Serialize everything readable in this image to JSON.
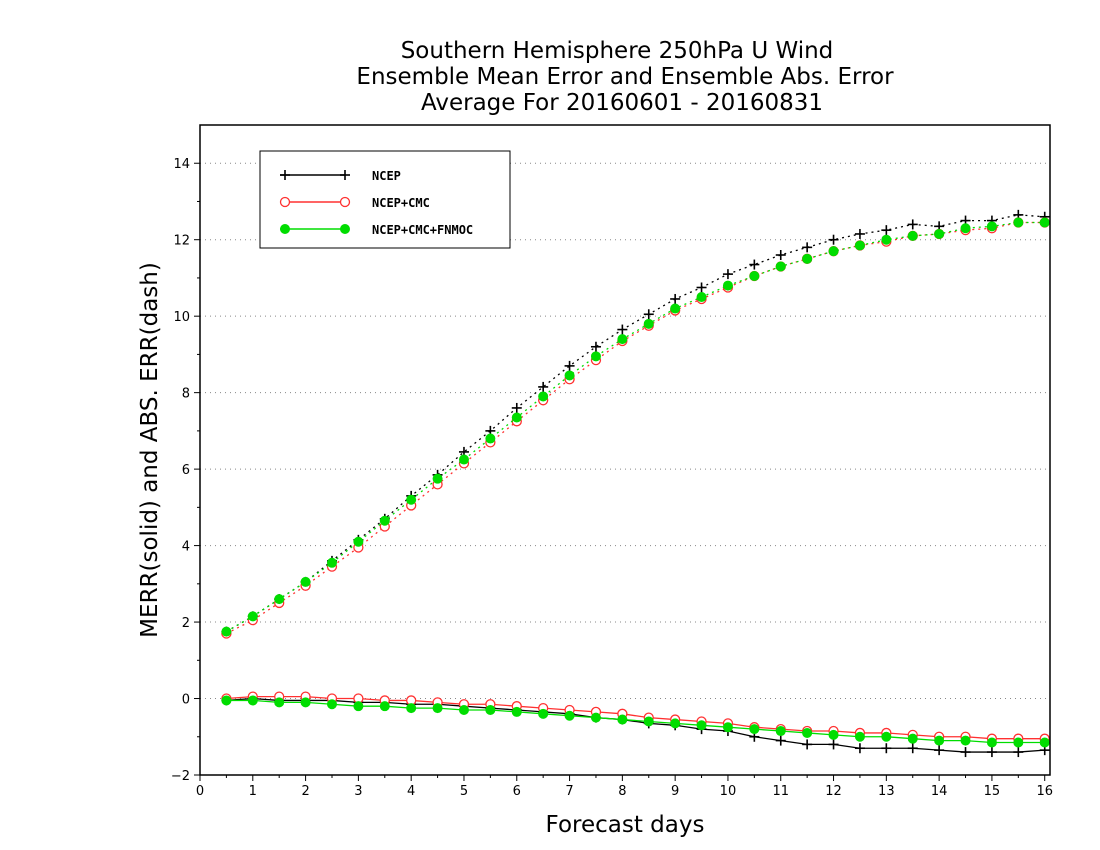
{
  "chart_data": {
    "type": "line",
    "title": [
      "Southern Hemisphere 250hPa U Wind",
      "Ensemble Mean Error and Ensemble Abs. Error",
      "Average For 20160601 - 20160831"
    ],
    "xlabel": "Forecast days",
    "ylabel": "MERR(solid) and ABS. ERR(dash)",
    "xlim": [
      0,
      16.1
    ],
    "ylim": [
      -2,
      15
    ],
    "xticks": [
      0,
      1,
      2,
      3,
      4,
      5,
      6,
      7,
      8,
      9,
      10,
      11,
      12,
      13,
      14,
      15,
      16
    ],
    "xtick_labels": [
      "0",
      "1",
      "2",
      "3",
      "4",
      "5",
      "6",
      "7",
      "8",
      "9",
      "10",
      "11",
      "12",
      "13",
      "14",
      "15",
      "16"
    ],
    "yticks": [
      -2,
      0,
      2,
      4,
      6,
      8,
      10,
      12,
      14
    ],
    "ytick_labels": [
      "−2",
      "0",
      "2",
      "4",
      "6",
      "8",
      "10",
      "12",
      "14"
    ],
    "grid": "horizontal dotted",
    "legend_position": "top-left",
    "x": [
      0.5,
      1,
      1.5,
      2,
      2.5,
      3,
      3.5,
      4,
      4.5,
      5,
      5.5,
      6,
      6.5,
      7,
      7.5,
      8,
      8.5,
      9,
      9.5,
      10,
      10.5,
      11,
      11.5,
      12,
      12.5,
      13,
      13.5,
      14,
      14.5,
      15,
      15.5,
      16
    ],
    "series": [
      {
        "name": "NCEP",
        "color": "#000000",
        "marker": "plus",
        "abs_err": [
          1.75,
          2.15,
          2.6,
          3.05,
          3.6,
          4.15,
          4.7,
          5.3,
          5.85,
          6.45,
          7.0,
          7.6,
          8.15,
          8.7,
          9.2,
          9.65,
          10.05,
          10.45,
          10.75,
          11.1,
          11.35,
          11.6,
          11.8,
          12.0,
          12.15,
          12.25,
          12.4,
          12.35,
          12.5,
          12.5,
          12.65,
          12.6
        ],
        "mean_err": [
          -0.05,
          0.0,
          -0.05,
          -0.05,
          -0.05,
          -0.1,
          -0.1,
          -0.15,
          -0.15,
          -0.2,
          -0.25,
          -0.3,
          -0.35,
          -0.4,
          -0.5,
          -0.55,
          -0.65,
          -0.7,
          -0.8,
          -0.85,
          -1.0,
          -1.1,
          -1.2,
          -1.2,
          -1.3,
          -1.3,
          -1.3,
          -1.35,
          -1.4,
          -1.4,
          -1.4,
          -1.35
        ]
      },
      {
        "name": "NCEP+CMC",
        "color": "#ff3030",
        "marker": "open-circle",
        "abs_err": [
          1.7,
          2.05,
          2.5,
          2.95,
          3.45,
          3.95,
          4.5,
          5.05,
          5.6,
          6.15,
          6.7,
          7.25,
          7.8,
          8.35,
          8.85,
          9.35,
          9.75,
          10.15,
          10.45,
          10.75,
          11.05,
          11.3,
          11.5,
          11.7,
          11.85,
          11.95,
          12.1,
          12.15,
          12.25,
          12.3,
          12.45,
          12.45
        ],
        "mean_err": [
          0.0,
          0.05,
          0.05,
          0.05,
          0.0,
          0.0,
          -0.05,
          -0.05,
          -0.1,
          -0.15,
          -0.15,
          -0.2,
          -0.25,
          -0.3,
          -0.35,
          -0.4,
          -0.5,
          -0.55,
          -0.6,
          -0.65,
          -0.75,
          -0.8,
          -0.85,
          -0.85,
          -0.9,
          -0.9,
          -0.95,
          -1.0,
          -1.0,
          -1.05,
          -1.05,
          -1.05
        ]
      },
      {
        "name": "NCEP+CMC+FNMOC",
        "color": "#00dd00",
        "marker": "filled-circle",
        "abs_err": [
          1.75,
          2.15,
          2.6,
          3.05,
          3.55,
          4.1,
          4.65,
          5.2,
          5.75,
          6.25,
          6.8,
          7.35,
          7.9,
          8.45,
          8.95,
          9.4,
          9.8,
          10.2,
          10.5,
          10.8,
          11.05,
          11.3,
          11.5,
          11.7,
          11.85,
          12.0,
          12.1,
          12.15,
          12.3,
          12.35,
          12.45,
          12.45
        ],
        "mean_err": [
          -0.05,
          -0.05,
          -0.1,
          -0.1,
          -0.15,
          -0.2,
          -0.2,
          -0.25,
          -0.25,
          -0.3,
          -0.3,
          -0.35,
          -0.4,
          -0.45,
          -0.5,
          -0.55,
          -0.6,
          -0.65,
          -0.7,
          -0.75,
          -0.8,
          -0.85,
          -0.9,
          -0.95,
          -1.0,
          -1.0,
          -1.05,
          -1.1,
          -1.1,
          -1.15,
          -1.15,
          -1.15
        ]
      }
    ]
  }
}
